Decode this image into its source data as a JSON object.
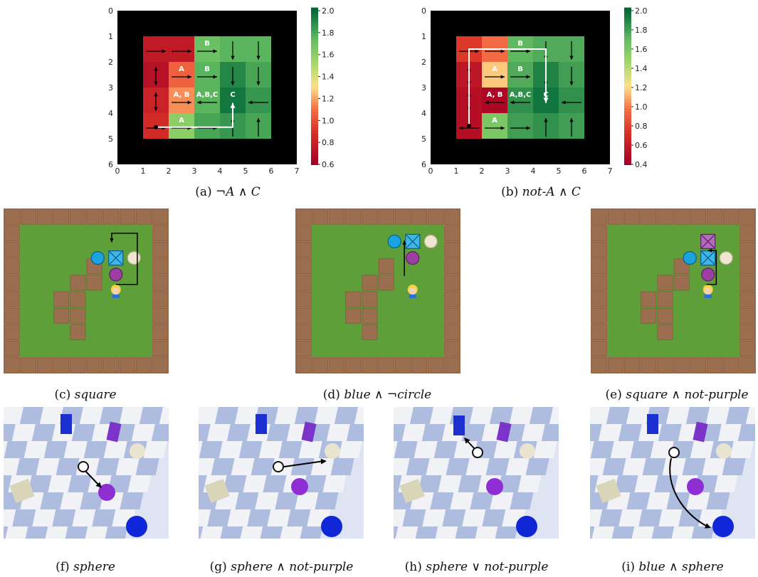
{
  "captions": {
    "a": {
      "prefix": "(a) ",
      "formula": "¬A ∧ C"
    },
    "b": {
      "prefix": "(b) ",
      "formula": "not-A ∧ C"
    },
    "c": {
      "prefix": "(c) ",
      "formula": "square"
    },
    "d": {
      "prefix": "(d) ",
      "formula": "blue ∧ ¬circle"
    },
    "e": {
      "prefix": "(e) ",
      "formula": "square ∧ not-purple"
    },
    "f": {
      "prefix": "(f) ",
      "formula": "sphere"
    },
    "g": {
      "prefix": "(g) ",
      "formula": "sphere ∧ not-purple"
    },
    "h": {
      "prefix": "(h) ",
      "formula": "sphere ∨ not-purple"
    },
    "i": {
      "prefix": "(i) ",
      "formula": "blue ∧ sphere"
    }
  },
  "chart_data": [
    {
      "type": "heatmap",
      "id": "a",
      "xlim": [
        0,
        7
      ],
      "ylim": [
        6,
        0
      ],
      "xticks": [
        "0",
        "1",
        "2",
        "3",
        "4",
        "5",
        "6",
        "7"
      ],
      "yticks": [
        "0",
        "1",
        "2",
        "3",
        "4",
        "5",
        "6"
      ],
      "colorbar": {
        "min": 0.6,
        "max": 2.0,
        "ticks": [
          "0.6",
          "0.8",
          "1.0",
          "1.2",
          "1.4",
          "1.6",
          "1.8",
          "2.0"
        ]
      },
      "grid_values": [
        [
          0.75,
          0.75,
          1.7,
          1.75,
          1.75
        ],
        [
          0.7,
          1.05,
          1.75,
          1.9,
          1.8
        ],
        [
          0.8,
          1.15,
          1.75,
          1.95,
          1.85
        ],
        [
          0.85,
          1.6,
          1.8,
          1.85,
          1.8
        ]
      ],
      "cell_labels": [
        [
          "",
          "",
          "B",
          "",
          ""
        ],
        [
          "",
          "A",
          "B",
          "",
          ""
        ],
        [
          "",
          "A, B",
          "A,B,C",
          "C",
          ""
        ],
        [
          "",
          "A",
          "",
          "",
          ""
        ]
      ],
      "arrows": [
        [
          "right",
          "right",
          "right",
          "down",
          "down"
        ],
        [
          "updown",
          "right",
          "right",
          "down",
          "down"
        ],
        [
          "updown",
          "right",
          "left",
          "",
          "left"
        ],
        [
          "right",
          "right",
          "right",
          "up",
          "up"
        ]
      ]
    },
    {
      "type": "heatmap",
      "id": "b",
      "xlim": [
        0,
        7
      ],
      "ylim": [
        6,
        0
      ],
      "xticks": [
        "0",
        "1",
        "2",
        "3",
        "4",
        "5",
        "6",
        "7"
      ],
      "yticks": [
        "0",
        "1",
        "2",
        "3",
        "4",
        "5",
        "6"
      ],
      "colorbar": {
        "min": 0.4,
        "max": 2.0,
        "ticks": [
          "0.4",
          "0.6",
          "0.8",
          "1.0",
          "1.2",
          "1.4",
          "1.6",
          "1.8",
          "2.0"
        ]
      },
      "grid_values": [
        [
          0.75,
          0.95,
          1.7,
          1.75,
          1.75
        ],
        [
          0.55,
          1.15,
          1.75,
          1.9,
          1.8
        ],
        [
          0.5,
          0.45,
          1.85,
          1.95,
          1.85
        ],
        [
          0.5,
          1.6,
          1.8,
          1.85,
          1.8
        ]
      ],
      "cell_labels": [
        [
          "",
          "",
          "B",
          "",
          ""
        ],
        [
          "",
          "A",
          "B",
          "",
          ""
        ],
        [
          "",
          "A, B",
          "A,B,C",
          "C",
          ""
        ],
        [
          "",
          "A",
          "",
          "",
          ""
        ]
      ],
      "arrows": [
        [
          "right",
          "right",
          "right",
          "down",
          "down"
        ],
        [
          "updown",
          "right",
          "right",
          "down",
          "down"
        ],
        [
          "updown",
          "left",
          "left",
          "",
          "left"
        ],
        [
          "left",
          "right",
          "right",
          "up",
          "up"
        ]
      ]
    }
  ]
}
